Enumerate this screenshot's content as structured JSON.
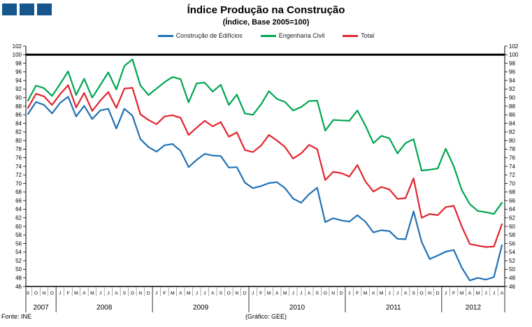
{
  "title": "Índice Produção na Construção",
  "subtitle": "(Índice, Base 2005=100)",
  "logo": {
    "color": "#15568F",
    "count": 3
  },
  "footer": {
    "source": "Fonte: INE",
    "credit": "(Gráfico: GEE)"
  },
  "chart_data": {
    "type": "line",
    "title": "Índice Produção na Construção",
    "subtitle": "(Índice, Base 2005=100)",
    "ylim": [
      46,
      102
    ],
    "ytick_step": 2,
    "grid": false,
    "legend_position": "top",
    "reference_line": {
      "value": 100,
      "color": "#000000",
      "width": 3
    },
    "axis_color": "#000000",
    "x_labels": [
      "S",
      "O",
      "N",
      "D",
      "J",
      "F",
      "M",
      "A",
      "M",
      "J",
      "J",
      "A",
      "S",
      "O",
      "N",
      "D",
      "J",
      "F",
      "M",
      "A",
      "M",
      "J",
      "J",
      "A",
      "S",
      "O",
      "N",
      "D",
      "J",
      "F",
      "M",
      "A",
      "M",
      "J",
      "J",
      "A",
      "S",
      "O",
      "N",
      "D",
      "J",
      "F",
      "M",
      "A",
      "M",
      "J",
      "J",
      "A",
      "S",
      "O",
      "N",
      "D",
      "J",
      "F",
      "M",
      "A",
      "M",
      "J",
      "J",
      "A"
    ],
    "years": [
      {
        "label": "2007",
        "months": 4
      },
      {
        "label": "2008",
        "months": 12
      },
      {
        "label": "2009",
        "months": 12
      },
      {
        "label": "2010",
        "months": 12
      },
      {
        "label": "2011",
        "months": 12
      },
      {
        "label": "2012",
        "months": 8
      }
    ],
    "series": [
      {
        "name": "Construção de Edifícios",
        "color": "#2171B5",
        "values": [
          86.2,
          89.0,
          88.3,
          86.3,
          88.8,
          90.2,
          85.6,
          88.1,
          85.0,
          87.0,
          87.4,
          82.8,
          87.4,
          85.8,
          80.3,
          78.5,
          77.4,
          78.9,
          79.2,
          77.6,
          73.8,
          75.5,
          76.9,
          76.5,
          76.4,
          73.7,
          73.8,
          70.2,
          68.9,
          69.4,
          70.1,
          70.3,
          68.9,
          66.5,
          65.5,
          67.5,
          69.0,
          61.0,
          61.9,
          61.4,
          61.1,
          62.6,
          61.1,
          58.6,
          59.1,
          58.9,
          57.1,
          57.0,
          63.5,
          56.4,
          52.4,
          53.2,
          54.1,
          54.5,
          50.4,
          47.4,
          48.0,
          47.6,
          48.2,
          55.6
        ]
      },
      {
        "name": "Engenharia Civil",
        "color": "#00A651",
        "values": [
          89.3,
          92.8,
          92.2,
          90.4,
          93.2,
          96.1,
          90.6,
          94.4,
          90.0,
          92.9,
          95.9,
          91.9,
          97.4,
          98.9,
          92.8,
          90.6,
          92.1,
          93.6,
          94.8,
          94.3,
          88.9,
          93.3,
          93.5,
          91.4,
          93.0,
          88.3,
          90.7,
          86.3,
          86.0,
          88.4,
          91.5,
          89.7,
          89.0,
          87.0,
          87.8,
          89.2,
          89.3,
          82.3,
          84.8,
          84.7,
          84.6,
          87.0,
          83.5,
          79.4,
          81.1,
          80.5,
          77.0,
          79.4,
          80.3,
          73.0,
          73.2,
          73.5,
          78.1,
          74.0,
          68.5,
          65.2,
          63.6,
          63.3,
          62.9,
          65.5
        ]
      },
      {
        "name": "Total",
        "color": "#E2242E",
        "values": [
          87.6,
          90.9,
          90.3,
          88.3,
          90.8,
          92.9,
          87.7,
          91.1,
          86.9,
          89.3,
          91.3,
          87.6,
          92.1,
          92.3,
          86.1,
          84.8,
          83.8,
          85.6,
          85.9,
          85.3,
          81.3,
          83.0,
          84.6,
          83.3,
          84.3,
          80.9,
          81.9,
          77.8,
          77.3,
          78.8,
          81.3,
          80.0,
          78.5,
          75.8,
          77.0,
          79.0,
          78.0,
          70.8,
          72.7,
          72.4,
          71.6,
          74.3,
          70.5,
          68.1,
          69.2,
          68.6,
          66.4,
          66.6,
          71.2,
          62.0,
          62.9,
          62.6,
          64.5,
          64.8,
          60.0,
          55.9,
          55.5,
          55.2,
          55.3,
          60.5
        ]
      }
    ]
  }
}
